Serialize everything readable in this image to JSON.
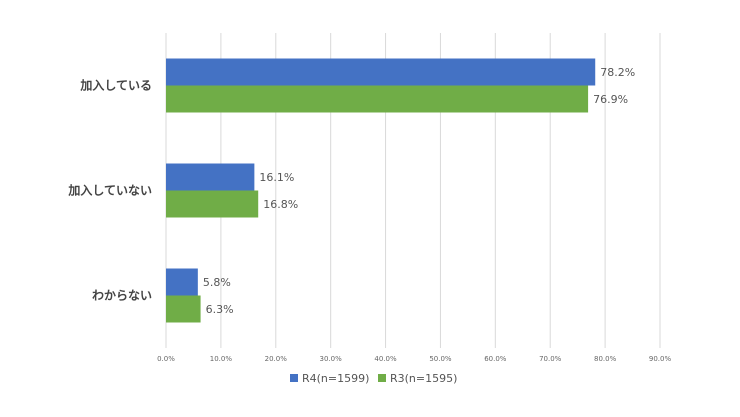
{
  "chart_data": {
    "type": "bar",
    "orientation": "horizontal",
    "categories": [
      "加入している",
      "加入していない",
      "わからない"
    ],
    "series": [
      {
        "name": "R4(n=1599)",
        "values": [
          78.2,
          16.1,
          5.8
        ],
        "labels": [
          "78.2%",
          "16.1%",
          "5.8%"
        ],
        "color": "#4472c4"
      },
      {
        "name": "R3(n=1595)",
        "values": [
          76.9,
          16.8,
          6.3
        ],
        "labels": [
          "76.9%",
          "16.8%",
          "6.3%"
        ],
        "color": "#70ad47"
      }
    ],
    "xlim": [
      0,
      90
    ],
    "xticks": [
      "0.0%",
      "10.0%",
      "20.0%",
      "30.0%",
      "40.0%",
      "50.0%",
      "60.0%",
      "70.0%",
      "80.0%",
      "90.0%"
    ],
    "grid": "vertical",
    "legend": "bottom"
  }
}
